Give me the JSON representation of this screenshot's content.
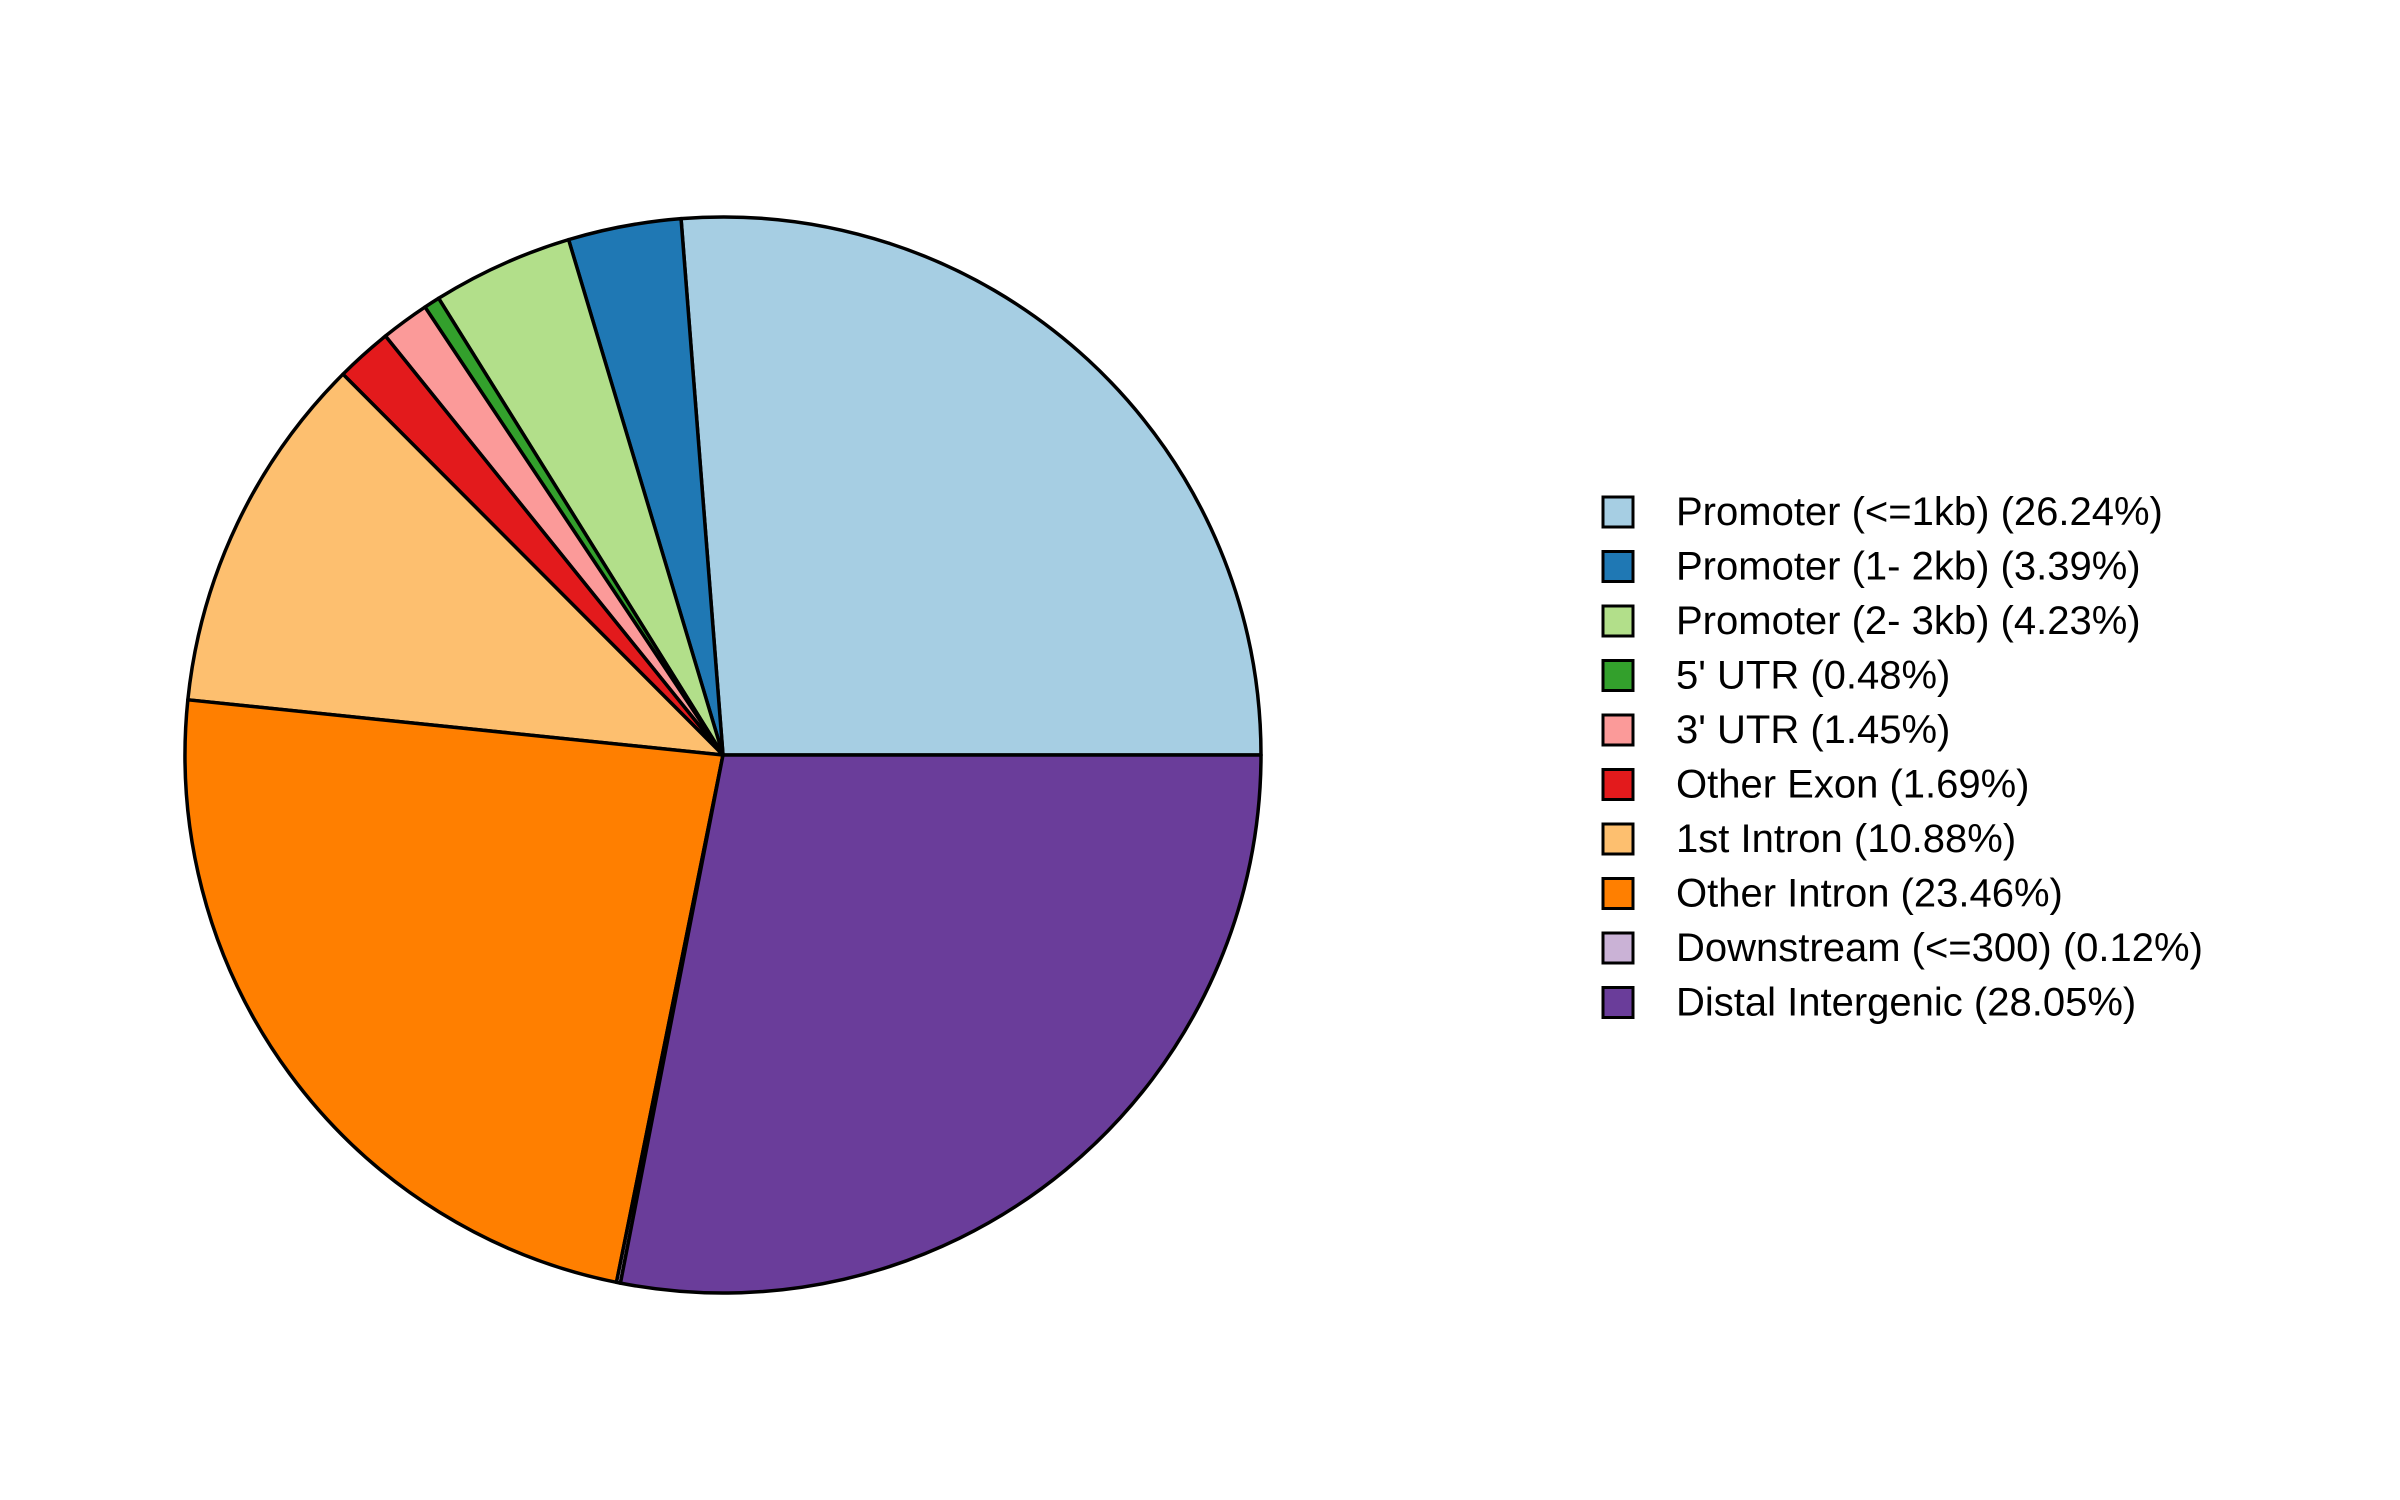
{
  "chart_data": {
    "type": "pie",
    "start": "3 o'clock",
    "direction": "counterclockwise",
    "legend_position": "right",
    "slices": [
      {
        "label": "Promoter (<=1kb) (26.24%)",
        "value": 26.24,
        "color": "#A6CEE3"
      },
      {
        "label": "Promoter (1- 2kb) (3.39%)",
        "value": 3.39,
        "color": "#1F78B4"
      },
      {
        "label": "Promoter (2- 3kb) (4.23%)",
        "value": 4.23,
        "color": "#B2DF8A"
      },
      {
        "label": "5' UTR (0.48%)",
        "value": 0.48,
        "color": "#33A02C"
      },
      {
        "label": "3' UTR (1.45%)",
        "value": 1.45,
        "color": "#FB9A99"
      },
      {
        "label": "Other Exon (1.69%)",
        "value": 1.69,
        "color": "#E31A1C"
      },
      {
        "label": "1st Intron (10.88%)",
        "value": 10.88,
        "color": "#FDBF6F"
      },
      {
        "label": "Other Intron (23.46%)",
        "value": 23.46,
        "color": "#FF7F00"
      },
      {
        "label": "Downstream (<=300) (0.12%)",
        "value": 0.12,
        "color": "#CAB2D6"
      },
      {
        "label": "Distal Intergenic (28.05%)",
        "value": 28.05,
        "color": "#6A3D9A"
      }
    ]
  }
}
